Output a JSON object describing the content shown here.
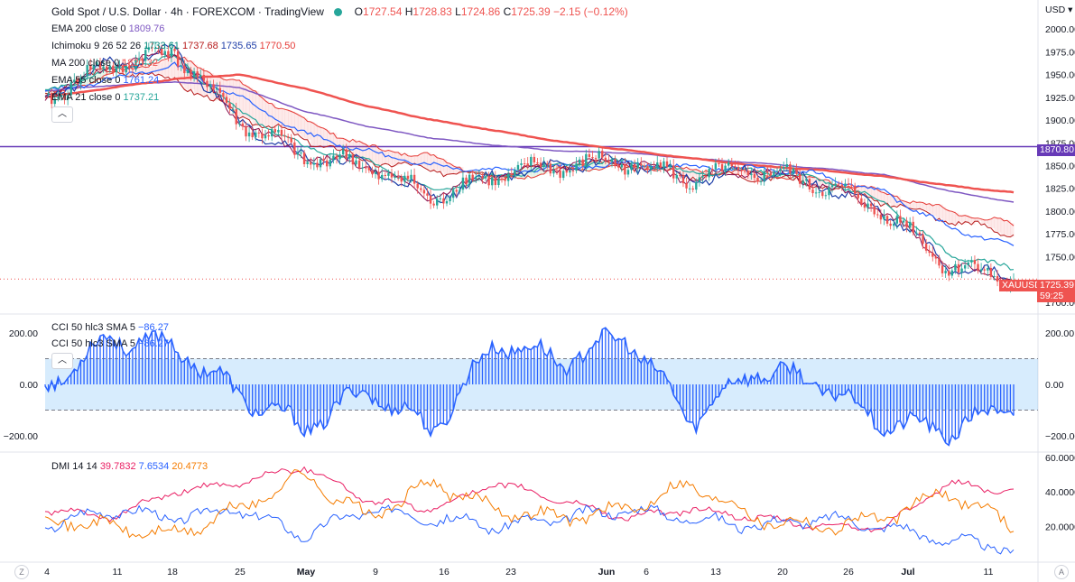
{
  "header": {
    "title": "Gold Spot / U.S. Dollar",
    "interval": "4h",
    "exchange": "FOREXCOM",
    "source": "TradingView",
    "open_label": "O",
    "open": "1727.54",
    "high_label": "H",
    "high": "1728.83",
    "low_label": "L",
    "low": "1724.86",
    "close_label": "C",
    "close": "1725.39",
    "change": "−2.15 (−0.12%)",
    "currency": "USD"
  },
  "indicators": [
    {
      "label": "EMA 200 close 0",
      "value": "1809.76",
      "color": "#7e57c2"
    },
    {
      "label": "Ichimoku 9 26 52 26",
      "values": [
        "1733.61",
        "1737.68",
        "1735.65",
        "1770.50"
      ],
      "colors": [
        "#00897b",
        "#b71c1c",
        "#1e3ea8",
        "#e53935"
      ]
    },
    {
      "label": "MA 200 close 0",
      "value": "1820.32",
      "color": "#ef5350"
    },
    {
      "label": "EMA 55 close 0",
      "value": "1761.24",
      "color": "#2962ff"
    },
    {
      "label": "EMA 21 close 0",
      "value": "1737.21",
      "color": "#26a69a"
    }
  ],
  "cci": {
    "label1": "CCI 50 hlc3 SMA 5",
    "value1": "−86.27",
    "label2": "CCI 50 hlc3 SMA 5",
    "value2": "−86.27",
    "color": "#2962ff"
  },
  "dmi": {
    "label": "DMI 14 14",
    "plus_di": "39.7832",
    "plus_color": "#e91e63",
    "minus_di": "7.6534",
    "minus_color": "#2962ff",
    "adx": "20.4773",
    "adx_color": "#f57c00"
  },
  "price_axis": {
    "ticks": [
      "2000.00",
      "1975.00",
      "1950.00",
      "1925.00",
      "1900.00",
      "1875.00",
      "1850.00",
      "1825.00",
      "1800.00",
      "1775.00",
      "1750.00",
      "1700.00"
    ],
    "hline_label": "1870.80",
    "hline_color": "#673ab7",
    "symbol_tag": "XAUUSD",
    "last_price": "1725.39",
    "countdown": "59:25",
    "last_color": "#ef5350"
  },
  "cci_axis": {
    "ticks": [
      "200.00",
      "0.00",
      "−200.00"
    ]
  },
  "dmi_axis": {
    "ticks": [
      "60.0000",
      "40.0000",
      "20.0000"
    ]
  },
  "time_axis": {
    "labels": [
      "4",
      "11",
      "18",
      "25",
      "May",
      "9",
      "16",
      "23",
      "Jun",
      "6",
      "13",
      "20",
      "26",
      "Jul",
      "11"
    ]
  },
  "corners": {
    "left": "Z",
    "right": "A"
  },
  "chart_data": {
    "type": "candlestick",
    "ylim": [
      1700,
      2010
    ],
    "x": [
      "Apr 4",
      "Apr 11",
      "Apr 18",
      "Apr 25",
      "May 2",
      "May 9",
      "May 16",
      "May 23",
      "Jun 1",
      "Jun 6",
      "Jun 13",
      "Jun 20",
      "Jun 26",
      "Jul 4",
      "Jul 11",
      "Jul 13"
    ],
    "close": [
      1925,
      1960,
      1975,
      1900,
      1860,
      1850,
      1815,
      1840,
      1850,
      1855,
      1835,
      1845,
      1830,
      1800,
      1740,
      1725.39
    ],
    "series": [
      {
        "name": "EMA 200 close 0",
        "values": [
          1932,
          1938,
          1942,
          1936,
          1910,
          1893,
          1880,
          1872,
          1866,
          1864,
          1858,
          1853,
          1847,
          1840,
          1822,
          1809.76
        ]
      },
      {
        "name": "MA 200 close 0",
        "values": [
          1925,
          1935,
          1945,
          1950,
          1935,
          1915,
          1900,
          1888,
          1876,
          1867,
          1858,
          1850,
          1845,
          1838,
          1828,
          1820.32
        ]
      },
      {
        "name": "EMA 55 close 0",
        "values": [
          1930,
          1945,
          1960,
          1925,
          1885,
          1865,
          1850,
          1845,
          1848,
          1852,
          1848,
          1847,
          1840,
          1820,
          1782,
          1761.24
        ]
      },
      {
        "name": "EMA 21 close 0",
        "values": [
          1930,
          1955,
          1970,
          1910,
          1870,
          1855,
          1823,
          1838,
          1850,
          1855,
          1842,
          1845,
          1835,
          1810,
          1752,
          1737.21
        ]
      }
    ],
    "hline": 1870.8,
    "cci": [
      -10,
      180,
      150,
      -40,
      -170,
      -20,
      -180,
      170,
      90,
      190,
      -140,
      60,
      5,
      -150,
      -180,
      -86.27
    ],
    "dmi": {
      "plus_di": [
        30,
        25,
        40,
        45,
        55,
        35,
        30,
        45,
        35,
        25,
        30,
        25,
        20,
        20,
        45,
        39.7832
      ],
      "minus_di": [
        20,
        30,
        25,
        30,
        15,
        30,
        25,
        20,
        25,
        30,
        25,
        20,
        25,
        20,
        12,
        7.6534
      ],
      "adx": [
        25,
        20,
        15,
        30,
        50,
        25,
        45,
        30,
        25,
        30,
        45,
        25,
        20,
        25,
        40,
        20.4773
      ]
    }
  }
}
